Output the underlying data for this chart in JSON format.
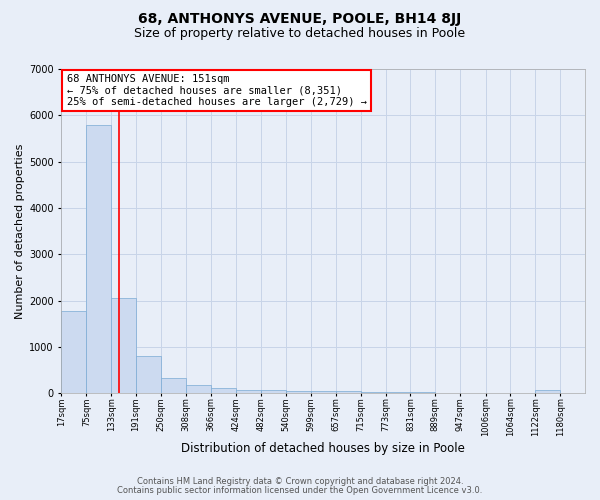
{
  "title": "68, ANTHONYS AVENUE, POOLE, BH14 8JJ",
  "subtitle": "Size of property relative to detached houses in Poole",
  "xlabel": "Distribution of detached houses by size in Poole",
  "ylabel": "Number of detached properties",
  "bin_edges": [
    17,
    75,
    133,
    191,
    250,
    308,
    366,
    424,
    482,
    540,
    599,
    657,
    715,
    773,
    831,
    889,
    947,
    1006,
    1064,
    1122,
    1180
  ],
  "bar_heights": [
    1780,
    5800,
    2050,
    800,
    330,
    180,
    120,
    80,
    65,
    55,
    50,
    40,
    30,
    25,
    18,
    15,
    12,
    10,
    8,
    70
  ],
  "bar_color": "#ccdaf0",
  "bar_edge_color": "#7aaad4",
  "red_line_x": 151,
  "annotation_line1": "68 ANTHONYS AVENUE: 151sqm",
  "annotation_line2": "← 75% of detached houses are smaller (8,351)",
  "annotation_line3": "25% of semi-detached houses are larger (2,729) →",
  "annotation_box_color": "white",
  "annotation_box_edge": "red",
  "ylim": [
    0,
    7000
  ],
  "tick_labels": [
    "17sqm",
    "75sqm",
    "133sqm",
    "191sqm",
    "250sqm",
    "308sqm",
    "366sqm",
    "424sqm",
    "482sqm",
    "540sqm",
    "599sqm",
    "657sqm",
    "715sqm",
    "773sqm",
    "831sqm",
    "889sqm",
    "947sqm",
    "1006sqm",
    "1064sqm",
    "1122sqm",
    "1180sqm"
  ],
  "footer_line1": "Contains HM Land Registry data © Crown copyright and database right 2024.",
  "footer_line2": "Contains public sector information licensed under the Open Government Licence v3.0.",
  "background_color": "#e8eef8",
  "plot_bg_color": "#e8eef8",
  "grid_color": "#c8d4e8",
  "title_fontsize": 10,
  "subtitle_fontsize": 9,
  "annotation_fontsize": 7.5,
  "ylabel_fontsize": 8,
  "xlabel_fontsize": 8.5,
  "tick_fontsize": 6,
  "footer_fontsize": 6
}
